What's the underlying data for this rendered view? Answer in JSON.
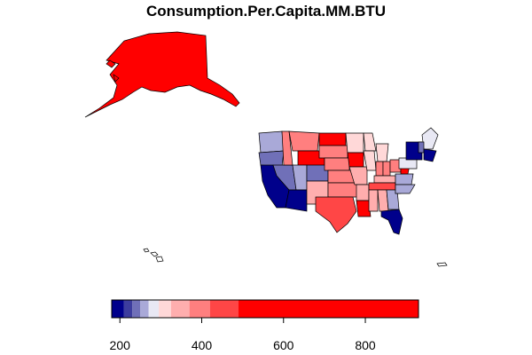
{
  "title": "Consumption.Per.Capita.MM.BTU",
  "legend": {
    "tick_labels": [
      "200",
      "400",
      "600",
      "800"
    ],
    "bins": [
      {
        "from": 180,
        "to": 210,
        "color": "#00008b"
      },
      {
        "from": 210,
        "to": 230,
        "color": "#3d3d9e"
      },
      {
        "from": 230,
        "to": 250,
        "color": "#7070b8"
      },
      {
        "from": 250,
        "to": 270,
        "color": "#a9a9d8"
      },
      {
        "from": 270,
        "to": 295,
        "color": "#e8e8f4"
      },
      {
        "from": 295,
        "to": 325,
        "color": "#ffd8d8"
      },
      {
        "from": 325,
        "to": 370,
        "color": "#ffaeae"
      },
      {
        "from": 370,
        "to": 420,
        "color": "#ff7f7f"
      },
      {
        "from": 420,
        "to": 490,
        "color": "#ff4646"
      },
      {
        "from": 490,
        "to": 930,
        "color": "#ff0000"
      }
    ]
  },
  "chart_data": {
    "type": "choropleth",
    "title": "Consumption.Per.Capita.MM.BTU",
    "colorbar_range": [
      180,
      930
    ],
    "colorbar_ticks": [
      200,
      400,
      600,
      800
    ]
  }
}
